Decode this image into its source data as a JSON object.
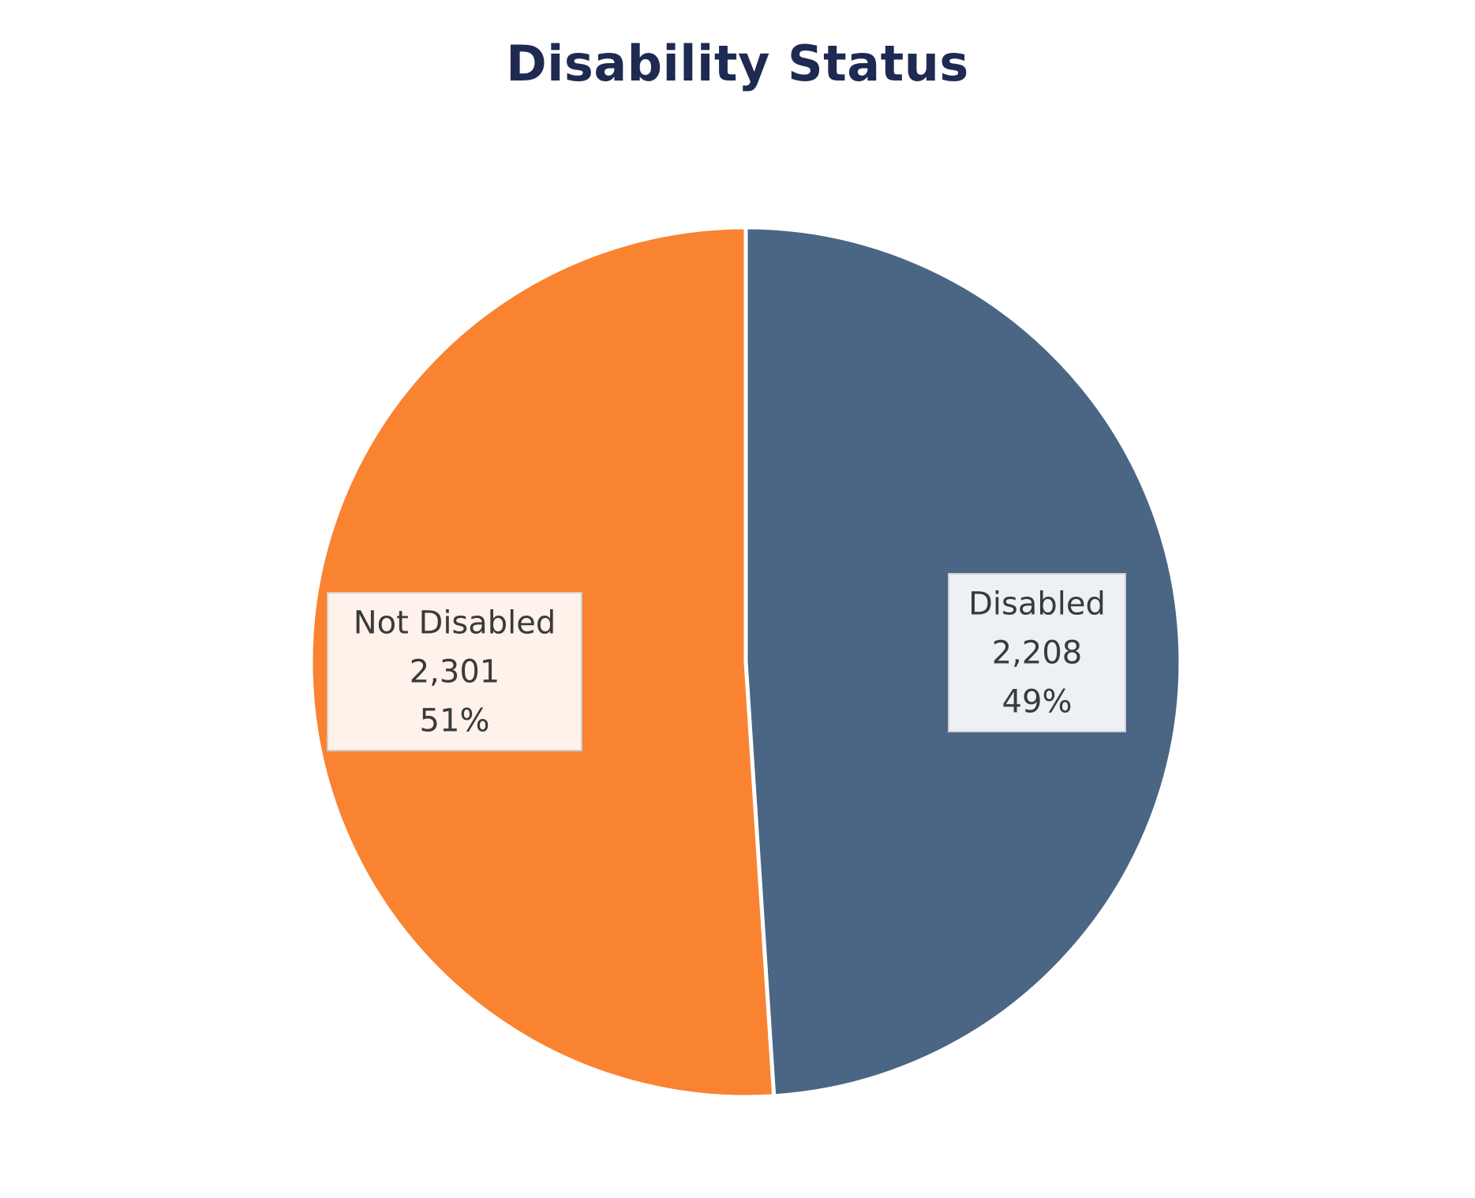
{
  "chart_data": {
    "type": "pie",
    "title": "Disability Status",
    "slices": [
      {
        "label": "Disabled",
        "value": 2208,
        "value_text": "2,208",
        "percent_text": "49%",
        "color": "#4b6584",
        "label_bg": "#edf1f5"
      },
      {
        "label": "Not Disabled",
        "value": 2301,
        "value_text": "2,301",
        "percent_text": "51%",
        "color": "#f98331",
        "label_bg": "#fef2ea"
      }
    ],
    "start_angle": "top",
    "direction": "clockwise",
    "legend": "none"
  }
}
